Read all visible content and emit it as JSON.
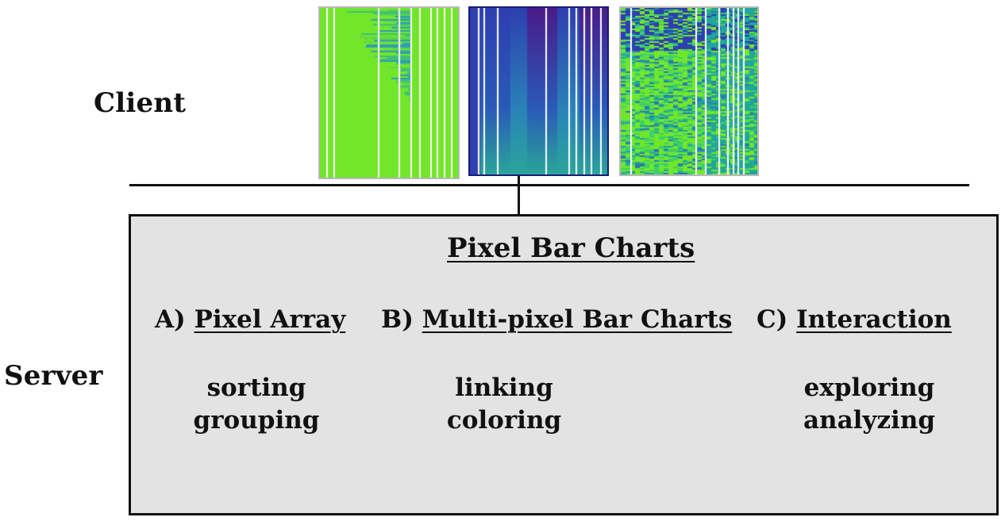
{
  "client_label": "Client",
  "server_label": "Server",
  "thumbnails": [
    {
      "name": "pixel-array-thumbnail",
      "palette": [
        "#72e62a",
        "#5fd844",
        "#3fc07a",
        "#2f9fb0",
        "#2a6fc0"
      ],
      "border": "#b8b8b8"
    },
    {
      "name": "multi-pixel-bar-chart-thumbnail",
      "palette": [
        "#2e3fb0",
        "#2a5ab8",
        "#2a82b8",
        "#2aa69a",
        "#4a1c8a"
      ],
      "border": "#1a1a7a"
    },
    {
      "name": "interaction-thumbnail",
      "palette": [
        "#72e62a",
        "#3ccf6a",
        "#22a69a",
        "#2a7ab0",
        "#2e3fb0"
      ],
      "border": "#b8b8b8"
    }
  ],
  "server": {
    "title": "Pixel Bar Charts",
    "sections": [
      {
        "prefix": "A)",
        "heading": "Pixel Array",
        "items": [
          "sorting",
          "grouping"
        ]
      },
      {
        "prefix": "B)",
        "heading": "Multi-pixel Bar Charts",
        "items": [
          "linking",
          "coloring"
        ]
      },
      {
        "prefix": "C)",
        "heading": "Interaction",
        "items": [
          "exploring",
          "analyzing"
        ]
      }
    ]
  }
}
